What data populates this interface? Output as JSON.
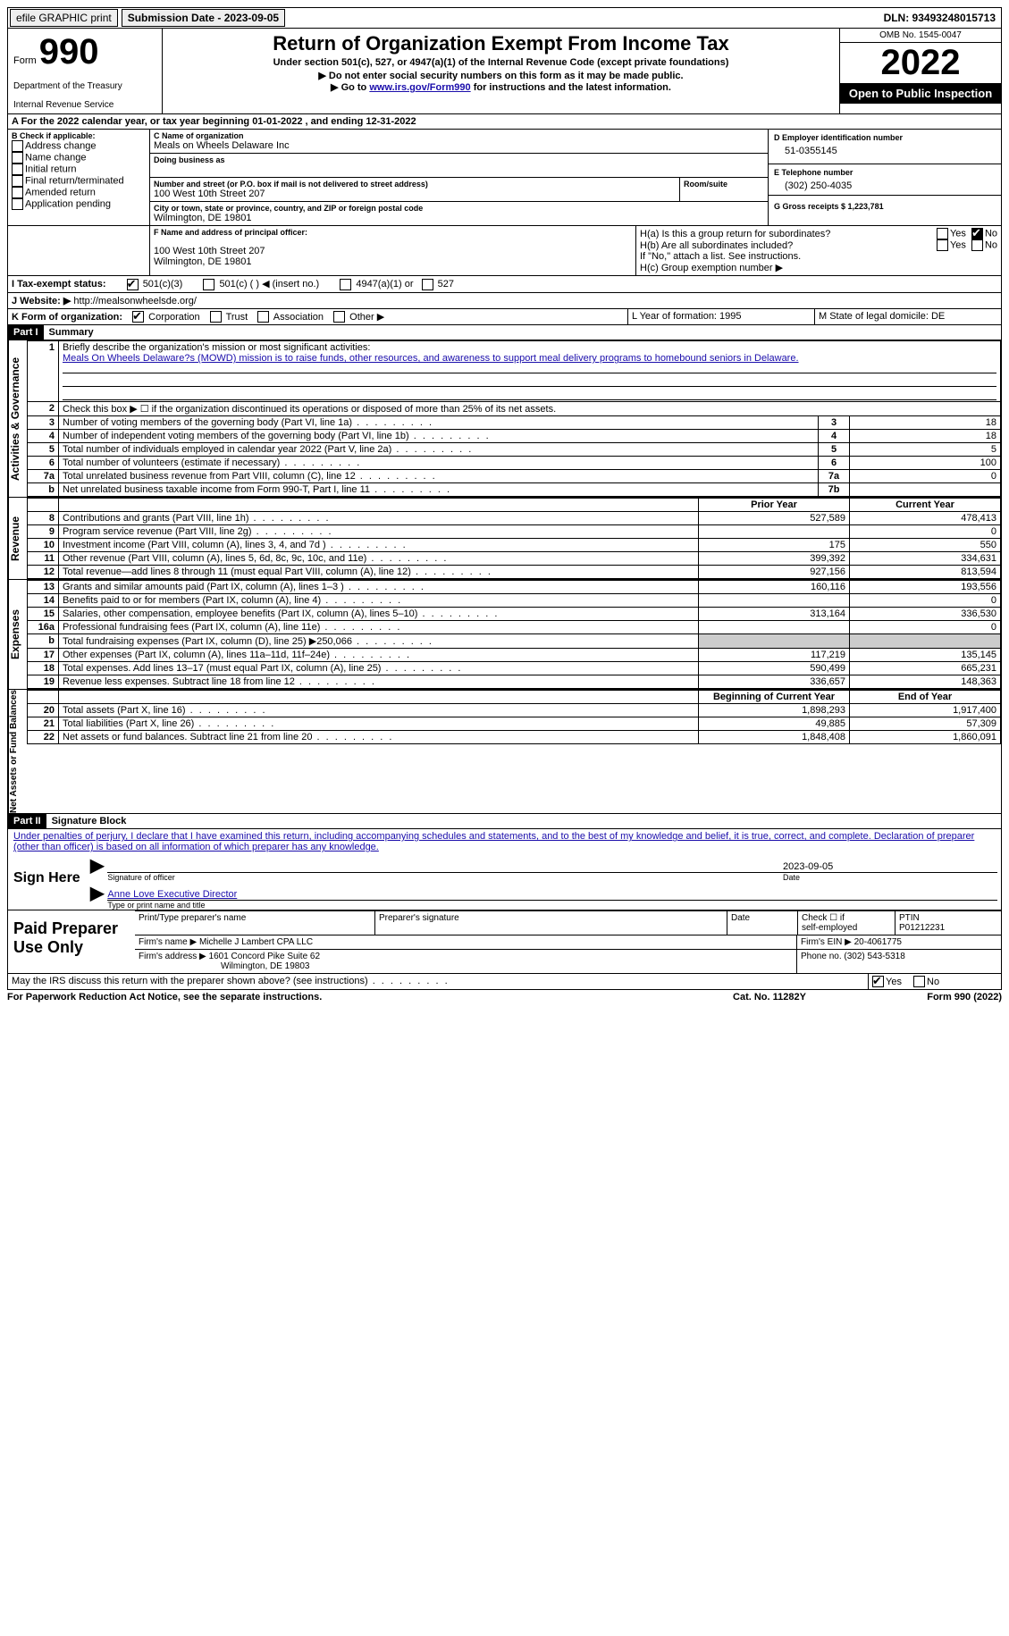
{
  "topbar": {
    "efile": "efile GRAPHIC print",
    "submission_label": "Submission Date - 2023-09-05",
    "dln_label": "DLN: 93493248015713"
  },
  "head": {
    "form_word": "Form",
    "form_no": "990",
    "dept": "Department of the Treasury",
    "irs": "Internal Revenue Service",
    "title": "Return of Organization Exempt From Income Tax",
    "sub1": "Under section 501(c), 527, or 4947(a)(1) of the Internal Revenue Code (except private foundations)",
    "sub2": "▶ Do not enter social security numbers on this form as it may be made public.",
    "sub3_pre": "▶ Go to ",
    "sub3_link": "www.irs.gov/Form990",
    "sub3_post": " for instructions and the latest information.",
    "omb": "OMB No. 1545-0047",
    "year": "2022",
    "open": "Open to Public Inspection"
  },
  "a_line": "A For the 2022 calendar year, or tax year beginning 01-01-2022   , and ending 12-31-2022",
  "b": {
    "label": "B Check if applicable:",
    "opts": [
      "Address change",
      "Name change",
      "Initial return",
      "Final return/terminated",
      "Amended return",
      "Application pending"
    ]
  },
  "c": {
    "name_lbl": "C Name of organization",
    "name": "Meals on Wheels Delaware Inc",
    "dba_lbl": "Doing business as",
    "dba": "",
    "addr_lbl": "Number and street (or P.O. box if mail is not delivered to street address)",
    "room_lbl": "Room/suite",
    "addr": "100 West 10th Street 207",
    "city_lbl": "City or town, state or province, country, and ZIP or foreign postal code",
    "city": "Wilmington, DE  19801"
  },
  "d": {
    "lbl": "D Employer identification number",
    "val": "51-0355145"
  },
  "e": {
    "lbl": "E Telephone number",
    "val": "(302) 250-4035"
  },
  "g": {
    "lbl": "G Gross receipts $ 1,223,781"
  },
  "f": {
    "lbl": "F  Name and address of principal officer:",
    "addr1": "100 West 10th Street 207",
    "addr2": "Wilmington, DE  19801"
  },
  "h": {
    "a_lbl": "H(a)  Is this a group return for subordinates?",
    "b_lbl": "H(b)  Are all subordinates included?",
    "b_note": "If \"No,\" attach a list. See instructions.",
    "c_lbl": "H(c)  Group exemption number ▶",
    "yes": "Yes",
    "no": "No"
  },
  "i": {
    "lbl": "I  Tax-exempt status:",
    "opt1": "501(c)(3)",
    "opt2": "501(c) (  ) ◀ (insert no.)",
    "opt3": "4947(a)(1) or",
    "opt4": "527"
  },
  "j": {
    "lbl": "J  Website: ▶",
    "val": "http://mealsonwheelsde.org/"
  },
  "k": {
    "lbl": "K Form of organization:",
    "corp": "Corporation",
    "trust": "Trust",
    "assoc": "Association",
    "other": "Other ▶"
  },
  "l": {
    "lbl": "L Year of formation: 1995"
  },
  "m": {
    "lbl": "M State of legal domicile: DE"
  },
  "part1": {
    "bar": "Part I",
    "title": "Summary"
  },
  "summary": {
    "l1_lbl": "Briefly describe the organization's mission or most significant activities:",
    "l1_val": "Meals On Wheels Delaware?s (MOWD) mission is to raise funds, other resources, and awareness to support meal delivery programs to homebound seniors in Delaware.",
    "l2": "Check this box ▶ ☐ if the organization discontinued its operations or disposed of more than 25% of its net assets.",
    "rows_ag": [
      {
        "n": "3",
        "d": "Number of voting members of the governing body (Part VI, line 1a)",
        "box": "3",
        "v": "18"
      },
      {
        "n": "4",
        "d": "Number of independent voting members of the governing body (Part VI, line 1b)",
        "box": "4",
        "v": "18"
      },
      {
        "n": "5",
        "d": "Total number of individuals employed in calendar year 2022 (Part V, line 2a)",
        "box": "5",
        "v": "5"
      },
      {
        "n": "6",
        "d": "Total number of volunteers (estimate if necessary)",
        "box": "6",
        "v": "100"
      },
      {
        "n": "7a",
        "d": "Total unrelated business revenue from Part VIII, column (C), line 12",
        "box": "7a",
        "v": "0"
      },
      {
        "n": "b",
        "d": "Net unrelated business taxable income from Form 990-T, Part I, line 11",
        "box": "7b",
        "v": ""
      }
    ],
    "col_prior": "Prior Year",
    "col_current": "Current Year",
    "rev": [
      {
        "n": "8",
        "d": "Contributions and grants (Part VIII, line 1h)",
        "p": "527,589",
        "c": "478,413"
      },
      {
        "n": "9",
        "d": "Program service revenue (Part VIII, line 2g)",
        "p": "",
        "c": "0"
      },
      {
        "n": "10",
        "d": "Investment income (Part VIII, column (A), lines 3, 4, and 7d )",
        "p": "175",
        "c": "550"
      },
      {
        "n": "11",
        "d": "Other revenue (Part VIII, column (A), lines 5, 6d, 8c, 9c, 10c, and 11e)",
        "p": "399,392",
        "c": "334,631"
      },
      {
        "n": "12",
        "d": "Total revenue—add lines 8 through 11 (must equal Part VIII, column (A), line 12)",
        "p": "927,156",
        "c": "813,594"
      }
    ],
    "exp": [
      {
        "n": "13",
        "d": "Grants and similar amounts paid (Part IX, column (A), lines 1–3 )",
        "p": "160,116",
        "c": "193,556"
      },
      {
        "n": "14",
        "d": "Benefits paid to or for members (Part IX, column (A), line 4)",
        "p": "",
        "c": "0"
      },
      {
        "n": "15",
        "d": "Salaries, other compensation, employee benefits (Part IX, column (A), lines 5–10)",
        "p": "313,164",
        "c": "336,530"
      },
      {
        "n": "16a",
        "d": "Professional fundraising fees (Part IX, column (A), line 11e)",
        "p": "",
        "c": "0"
      },
      {
        "n": "b",
        "d": "Total fundraising expenses (Part IX, column (D), line 25) ▶250,066",
        "p": "shade",
        "c": "shade"
      },
      {
        "n": "17",
        "d": "Other expenses (Part IX, column (A), lines 11a–11d, 11f–24e)",
        "p": "117,219",
        "c": "135,145"
      },
      {
        "n": "18",
        "d": "Total expenses. Add lines 13–17 (must equal Part IX, column (A), line 25)",
        "p": "590,499",
        "c": "665,231"
      },
      {
        "n": "19",
        "d": "Revenue less expenses. Subtract line 18 from line 12",
        "p": "336,657",
        "c": "148,363"
      }
    ],
    "col_beg": "Beginning of Current Year",
    "col_end": "End of Year",
    "net": [
      {
        "n": "20",
        "d": "Total assets (Part X, line 16)",
        "p": "1,898,293",
        "c": "1,917,400"
      },
      {
        "n": "21",
        "d": "Total liabilities (Part X, line 26)",
        "p": "49,885",
        "c": "57,309"
      },
      {
        "n": "22",
        "d": "Net assets or fund balances. Subtract line 21 from line 20",
        "p": "1,848,408",
        "c": "1,860,091"
      }
    ],
    "v_ag": "Activities & Governance",
    "v_rev": "Revenue",
    "v_exp": "Expenses",
    "v_net": "Net Assets or Fund Balances"
  },
  "part2": {
    "bar": "Part II",
    "title": "Signature Block"
  },
  "sig": {
    "perjury": "Under penalties of perjury, I declare that I have examined this return, including accompanying schedules and statements, and to the best of my knowledge and belief, it is true, correct, and complete. Declaration of preparer (other than officer) is based on all information of which preparer has any knowledge.",
    "sign_here": "Sign Here",
    "sig_officer_lbl": "Signature of officer",
    "date_val": "2023-09-05",
    "date_lbl": "Date",
    "name_val": "Anne Love  Executive Director",
    "name_lbl": "Type or print name and title"
  },
  "prep": {
    "title": "Paid Preparer Use Only",
    "h1": "Print/Type preparer's name",
    "h2": "Preparer's signature",
    "h3": "Date",
    "h4_a": "Check ☐ if",
    "h4_b": "self-employed",
    "h5_lbl": "PTIN",
    "h5_val": "P01212231",
    "firm_name_lbl": "Firm's name    ▶",
    "firm_name": "Michelle J Lambert CPA LLC",
    "firm_ein_lbl": "Firm's EIN ▶",
    "firm_ein": "20-4061775",
    "firm_addr_lbl": "Firm's address ▶",
    "firm_addr1": "1601 Concord Pike Suite 62",
    "firm_addr2": "Wilmington, DE  19803",
    "phone_lbl": "Phone no.",
    "phone": "(302) 543-5318"
  },
  "discuss": {
    "q": "May the IRS discuss this return with the preparer shown above? (see instructions)",
    "yes": "Yes",
    "no": "No"
  },
  "footer": {
    "pra": "For Paperwork Reduction Act Notice, see the separate instructions.",
    "cat": "Cat. No. 11282Y",
    "form": "Form 990 (2022)"
  }
}
